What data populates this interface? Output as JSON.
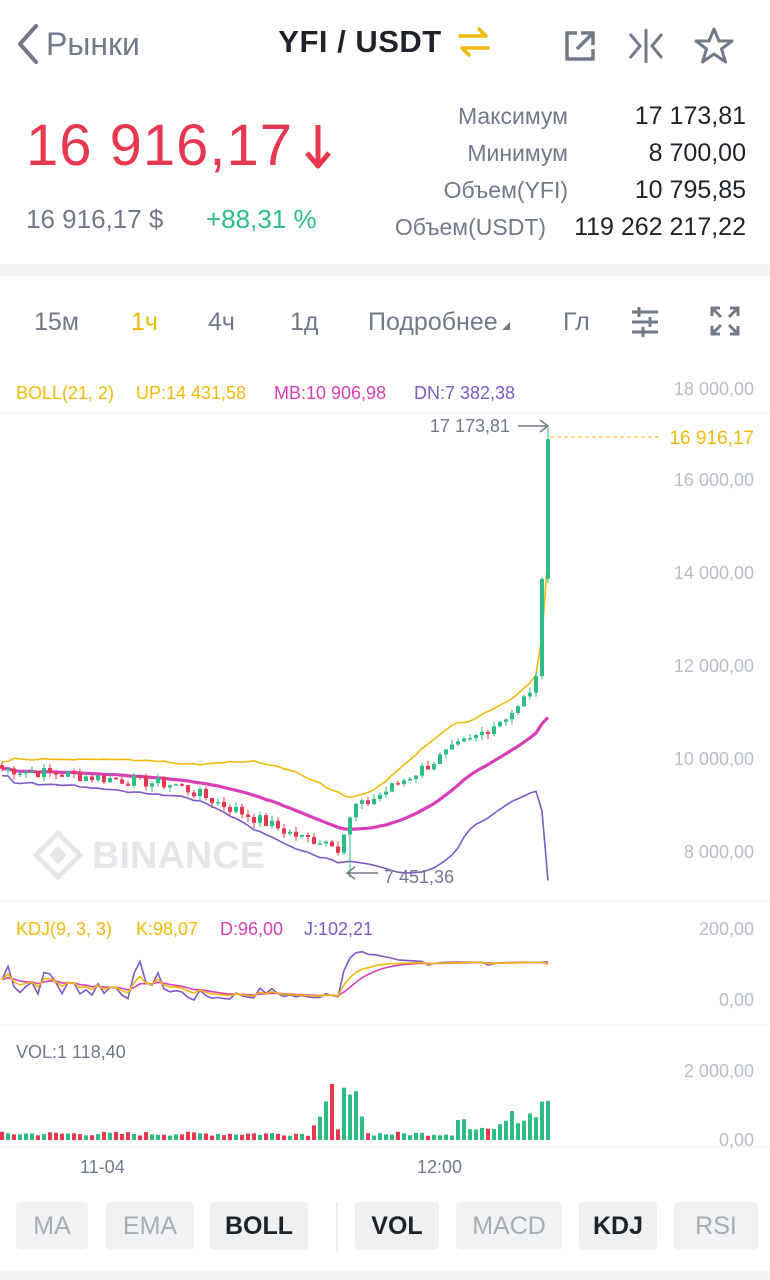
{
  "header": {
    "back_label": "Рынки",
    "pair": "YFI / USDT",
    "icons": [
      "arrow-left-icon",
      "swap-icon",
      "share-icon",
      "split-icon",
      "star-icon"
    ]
  },
  "ticker": {
    "last_price": "16 916,17",
    "fiat_price": "16 916,17 $",
    "change": "+88,31 %",
    "stats": [
      {
        "label": "Максимум",
        "value": "17 173,81"
      },
      {
        "label": "Минимум",
        "value": "8 700,00"
      },
      {
        "label": "Объем(YFI)",
        "value": "10 795,85"
      },
      {
        "label": "Объем(USDT)",
        "value": "119 262 217,22"
      }
    ]
  },
  "intervals": [
    "15м",
    "1ч",
    "4ч",
    "1д",
    "Подробнее",
    "Гл"
  ],
  "active_interval": "1ч",
  "chart_labels": {
    "boll": "BOLL(21, 2)",
    "boll_up": "UP:14 431,58",
    "boll_mb": "MB:10 906,98",
    "boll_dn": "DN:7 382,38",
    "price_axis": [
      "18 000,00",
      "16 000,00",
      "14 000,00",
      "12 000,00",
      "10 000,00",
      "8 000,00"
    ],
    "last_price_tag": "16 916,17",
    "high_marker": "17 173,81",
    "low_marker": "7 451,36",
    "watermark": "BINANCE",
    "kdj": "KDJ(9, 3, 3)",
    "kdj_k": "K:98,07",
    "kdj_d": "D:96,00",
    "kdj_j": "J:102,21",
    "kdj_axis": [
      "200,00",
      "0,00"
    ],
    "vol": "VOL:1 118,40",
    "vol_axis": [
      "2 000,00",
      "0,00"
    ],
    "time_axis": [
      "11-04",
      "12:00"
    ]
  },
  "chart_data": {
    "type": "candlestick",
    "price_range": [
      7200,
      18000
    ],
    "last_price": 16916.17,
    "high": 17173.81,
    "low": 7451.36,
    "boll": {
      "up": 14431.58,
      "mb": 10906.98,
      "dn": 7382.38
    },
    "kdj": {
      "k": 98.07,
      "d": 96.0,
      "j": 102.21
    },
    "kdj_range": [
      -60,
      200
    ],
    "vol_last": 1118.4,
    "vol_range": [
      0,
      2000
    ]
  },
  "colors": {
    "up": "#2ebd85",
    "down": "#e63950",
    "accent": "#f0b90b",
    "boll_mb": "#d63fb5",
    "boll_dn": "#7f5ac6"
  },
  "indicators": [
    {
      "label": "MA",
      "on": false
    },
    {
      "label": "EMA",
      "on": false
    },
    {
      "label": "BOLL",
      "on": true
    },
    {
      "label": "VOL",
      "on": true
    },
    {
      "label": "MACD",
      "on": false
    },
    {
      "label": "KDJ",
      "on": true
    },
    {
      "label": "RSI",
      "on": false
    }
  ]
}
